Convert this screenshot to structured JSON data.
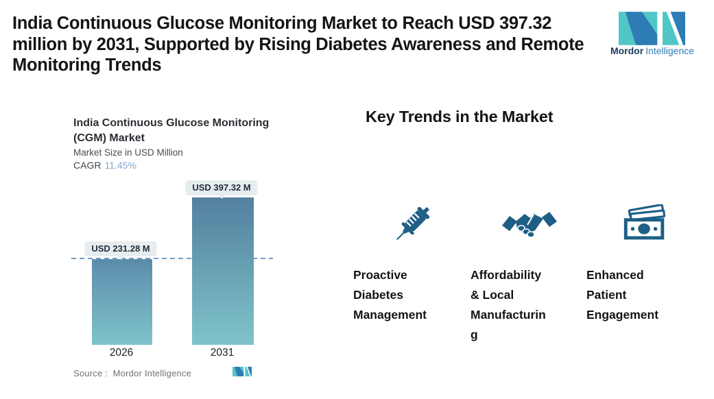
{
  "header": {
    "title": "India Continuous Glucose Monitoring Market to Reach USD 397.32\nmillion by 2031, Supported by Rising Diabetes Awareness and Remote\nMonitoring Trends"
  },
  "brand": {
    "logo_icon": "mordor-m-logo",
    "name_bold": "Mordor",
    "name_light": "Intelligence",
    "colors": {
      "teal": "#52c5c7",
      "blue": "#2d7cb4",
      "navy": "#1c3a5f"
    }
  },
  "chart": {
    "title": "India Continuous Glucose Monitoring\n(CGM) Market",
    "subtitle": "Market Size in USD Million",
    "cagr_label": "CAGR",
    "cagr_value": "11.45%",
    "bars": [
      {
        "year": "2026",
        "label": "USD 231.28 M"
      },
      {
        "year": "2031",
        "label": "USD 397.32 M"
      }
    ],
    "source": "Source :  Mordor Intelligence"
  },
  "chart_data": {
    "type": "bar",
    "categories": [
      "2026",
      "2031"
    ],
    "values": [
      231.28,
      397.32
    ],
    "title": "India Continuous Glucose Monitoring (CGM) Market",
    "xlabel": "",
    "ylabel": "Market Size in USD Million",
    "ylim": [
      0,
      397.32
    ],
    "cagr_pct": 11.45,
    "data_labels": [
      "USD 231.28 M",
      "USD 397.32 M"
    ],
    "reference_line": {
      "value": 231.28,
      "style": "dashed",
      "color": "#6f9cc4"
    },
    "bar_gradient_top": "#53809f",
    "bar_gradient_bottom": "#7fc3ca",
    "grid": false,
    "legend": false
  },
  "trends": {
    "heading": "Key Trends in the Market",
    "icon_color": "#1e5f86",
    "items": [
      {
        "icon": "syringe-icon",
        "label": "Proactive\nDiabetes\nManagement"
      },
      {
        "icon": "handshake-icon",
        "label": "Affordability\n& Local\nManufacturin\ng"
      },
      {
        "icon": "money-icon",
        "label": "Enhanced\nPatient\nEngagement"
      }
    ]
  }
}
